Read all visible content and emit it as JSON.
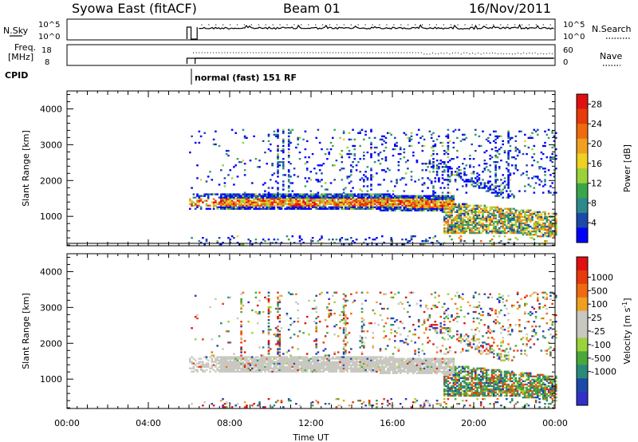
{
  "header": {
    "title": "Syowa East (fitACF)",
    "beam": "Beam 01",
    "date": "16/Nov/2011"
  },
  "strip_labels": {
    "nsky": "N.Sky",
    "nsky_hi": "10^5",
    "nsky_lo": "10^0",
    "nsearch": "N.Search",
    "nsearch_hi": "10^5",
    "nsearch_lo": "10^0",
    "freq": "Freq.",
    "freq_unit": "[MHz]",
    "freq_hi": "18",
    "freq_lo": "8",
    "nave": "Nave",
    "nave_hi": "60",
    "nave_lo": "0",
    "cpid": "CPID",
    "cpid_text": "normal (fast) 151 RF"
  },
  "colors": {
    "power": [
      "#0000ff",
      "#1c4aa8",
      "#2e8a8a",
      "#3aa64a",
      "#9ad23a",
      "#f0d020",
      "#f0a020",
      "#f06a10",
      "#e83a0a",
      "#e01010"
    ],
    "velocity": [
      "#3030c8",
      "#1c4aa8",
      "#2a8a7a",
      "#4aa83a",
      "#9ad23a",
      "#c8c8c0",
      "#c8c8c0",
      "#f0a020",
      "#f06a10",
      "#e83a0a",
      "#e01010"
    ]
  },
  "chart_data": [
    {
      "type": "heatmap",
      "name": "power",
      "xlabel": "Time UT",
      "ylabel": "Slant Range [km]",
      "x_ticks": [
        "00:00",
        "04:00",
        "08:00",
        "12:00",
        "16:00",
        "20:00",
        "00:00"
      ],
      "x_range_hours": [
        0,
        24
      ],
      "y_range": [
        180,
        4500
      ],
      "y_ticks": [
        1000,
        2000,
        3000,
        4000
      ],
      "colorbar_label": "Power [dB]",
      "colorbar_ticks": [
        "4",
        "8",
        "12",
        "16",
        "20",
        "24",
        "28"
      ],
      "colorbar_range": [
        0,
        30
      ],
      "data_start_hour": 6.0,
      "data_end_hour": 24.0
    },
    {
      "type": "heatmap",
      "name": "velocity",
      "xlabel": "Time UT",
      "ylabel": "Slant Range [km]",
      "x_ticks": [
        "00:00",
        "04:00",
        "08:00",
        "12:00",
        "16:00",
        "20:00",
        "00:00"
      ],
      "x_range_hours": [
        0,
        24
      ],
      "y_range": [
        180,
        4500
      ],
      "y_ticks": [
        1000,
        2000,
        3000,
        4000
      ],
      "colorbar_label": "Velocity [m s",
      "colorbar_label_sup": "-1",
      "colorbar_label_end": "]",
      "colorbar_ticks": [
        "1000",
        "500",
        "100",
        "25",
        "-25",
        "-100",
        "-500",
        "-1000"
      ],
      "data_start_hour": 6.0,
      "data_end_hour": 24.0
    }
  ]
}
